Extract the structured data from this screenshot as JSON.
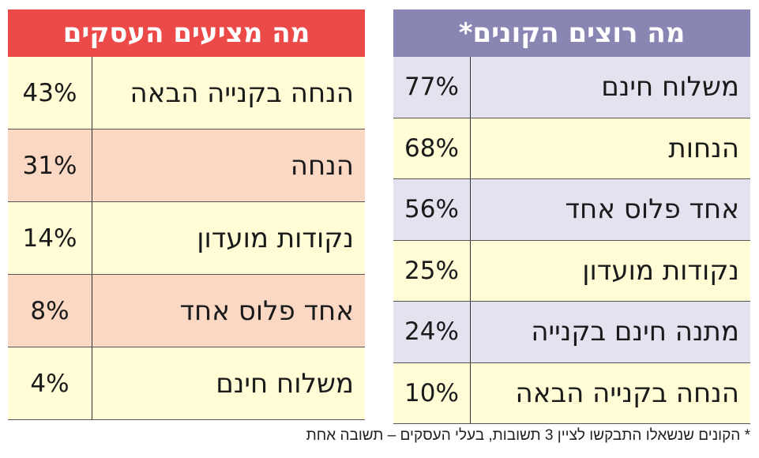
{
  "left": {
    "title": "מה מציעים העסקים",
    "header_color": "#ec4a48",
    "rows": [
      {
        "label": "הנחה בקנייה הבאה",
        "value": "43%",
        "color": "#fffcd6"
      },
      {
        "label": "הנחה",
        "value": "31%",
        "color": "#fbd8c3"
      },
      {
        "label": "נקודות מועדון",
        "value": "14%",
        "color": "#fffcd6"
      },
      {
        "label": "אחד פלוס אחד",
        "value": "8%",
        "color": "#fbd8c3"
      },
      {
        "label": "משלוח חינם",
        "value": "4%",
        "color": "#fffcd6"
      }
    ]
  },
  "right": {
    "title": "מה רוצים הקונים*",
    "header_color": "#8a86b4",
    "rows": [
      {
        "label": "משלוח חינם",
        "value": "77%",
        "color": "#e4e2ee"
      },
      {
        "label": "הנחות",
        "value": "68%",
        "color": "#fffcd6"
      },
      {
        "label": "אחד פלוס אחד",
        "value": "56%",
        "color": "#e4e2ee"
      },
      {
        "label": "נקודות מועדון",
        "value": "25%",
        "color": "#fffcd6"
      },
      {
        "label": "מתנה חינם בקנייה",
        "value": "24%",
        "color": "#e4e2ee"
      },
      {
        "label": "הנחה בקנייה הבאה",
        "value": "10%",
        "color": "#fffcd6"
      }
    ]
  },
  "footnote": "* הקונים שנשאלו התבקשו לציין 3 תשובות, בעלי העסקים – תשובה אחת"
}
